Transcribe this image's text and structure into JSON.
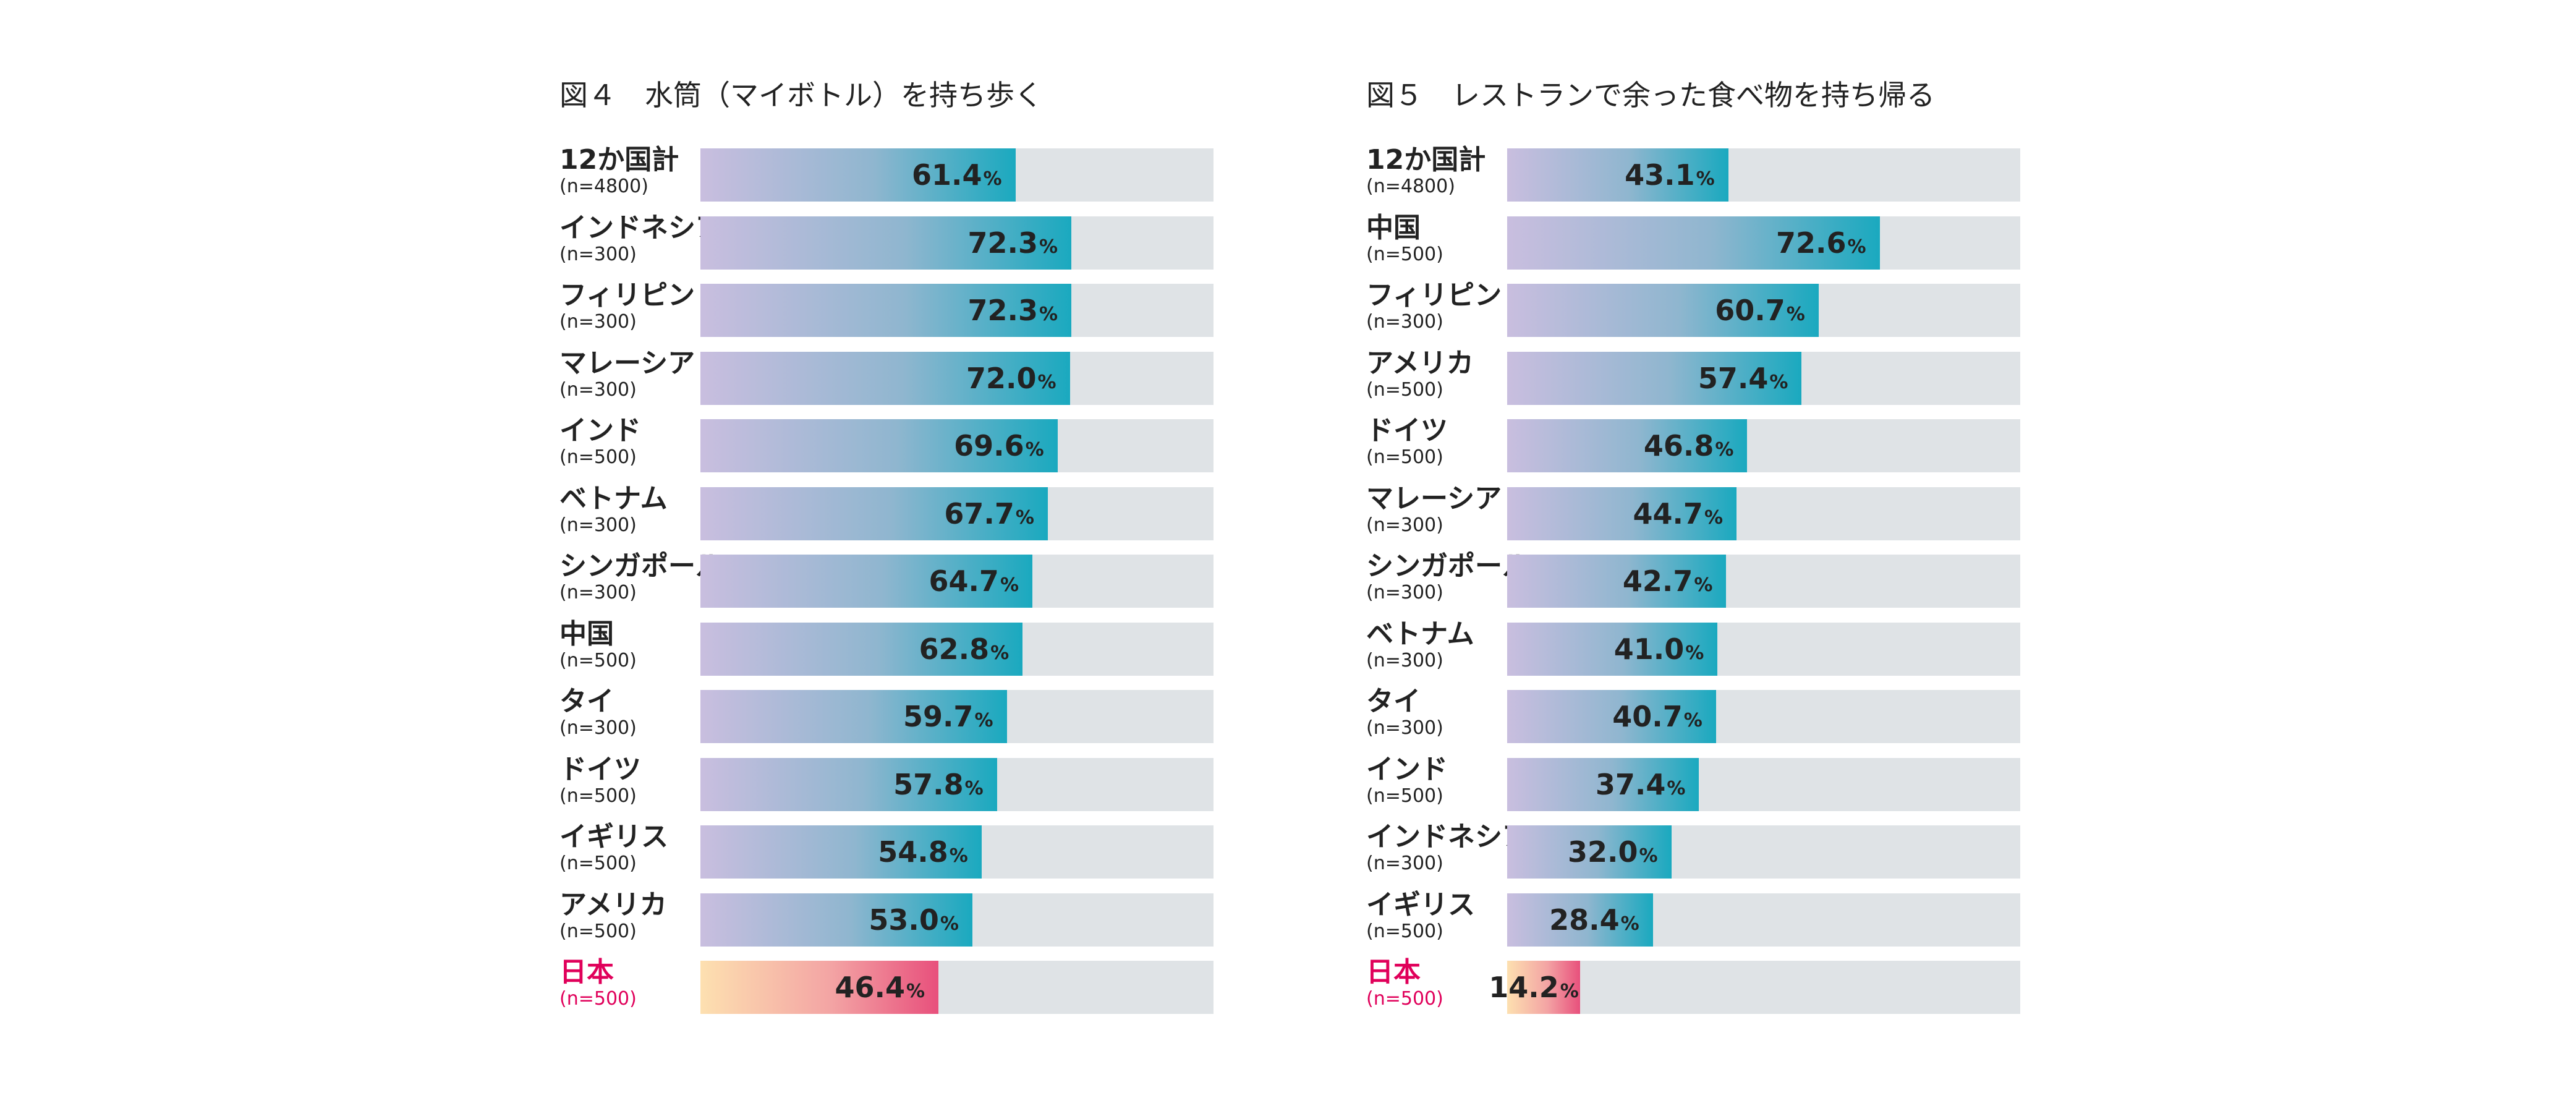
{
  "chart_data": [
    {
      "type": "bar",
      "orientation": "horizontal",
      "title": "図４　水筒（マイボトル）を持ち歩く",
      "xlim": [
        0,
        100
      ],
      "unit": "%",
      "categories": [
        "12か国計",
        "インドネシア",
        "フィリピン",
        "マレーシア",
        "インド",
        "ベトナム",
        "シンガポール",
        "中国",
        "タイ",
        "ドイツ",
        "イギリス",
        "アメリカ",
        "日本"
      ],
      "sample_sizes": [
        "(n=4800)",
        "(n=300)",
        "(n=300)",
        "(n=300)",
        "(n=500)",
        "(n=300)",
        "(n=300)",
        "(n=500)",
        "(n=300)",
        "(n=500)",
        "(n=500)",
        "(n=500)",
        "(n=500)"
      ],
      "values": [
        61.4,
        72.3,
        72.3,
        72.0,
        69.6,
        67.7,
        64.7,
        62.8,
        59.7,
        57.8,
        54.8,
        53.0,
        46.4
      ],
      "value_labels": [
        "61.4%",
        "72.3%",
        "72.3%",
        "72.0%",
        "69.6%",
        "67.7%",
        "64.7%",
        "62.8%",
        "59.7%",
        "57.8%",
        "54.8%",
        "53.0%",
        "46.4%"
      ],
      "highlight_category": "日本",
      "highlight_color": "#e0005a",
      "bar_color_start": "#c9bedf",
      "bar_color_end": "#1aa9bf",
      "track_color": "#dfe3e6"
    },
    {
      "type": "bar",
      "orientation": "horizontal",
      "title": "図５　レストランで余った食べ物を持ち帰る",
      "xlim": [
        0,
        100
      ],
      "unit": "%",
      "categories": [
        "12か国計",
        "中国",
        "フィリピン",
        "アメリカ",
        "ドイツ",
        "マレーシア",
        "シンガポール",
        "ベトナム",
        "タイ",
        "インド",
        "インドネシア",
        "イギリス",
        "日本"
      ],
      "sample_sizes": [
        "(n=4800)",
        "(n=500)",
        "(n=300)",
        "(n=500)",
        "(n=500)",
        "(n=300)",
        "(n=300)",
        "(n=300)",
        "(n=300)",
        "(n=500)",
        "(n=300)",
        "(n=500)",
        "(n=500)"
      ],
      "values": [
        43.1,
        72.6,
        60.7,
        57.4,
        46.8,
        44.7,
        42.7,
        41.0,
        40.7,
        37.4,
        32.0,
        28.4,
        14.2
      ],
      "value_labels": [
        "43.1%",
        "72.6%",
        "60.7%",
        "57.4%",
        "46.8%",
        "44.7%",
        "42.7%",
        "41.0%",
        "40.7%",
        "37.4%",
        "32.0%",
        "28.4%",
        "14.2%"
      ],
      "highlight_category": "日本",
      "highlight_color": "#e0005a",
      "bar_color_start": "#c9bedf",
      "bar_color_end": "#1aa9bf",
      "track_color": "#dfe3e6"
    }
  ]
}
